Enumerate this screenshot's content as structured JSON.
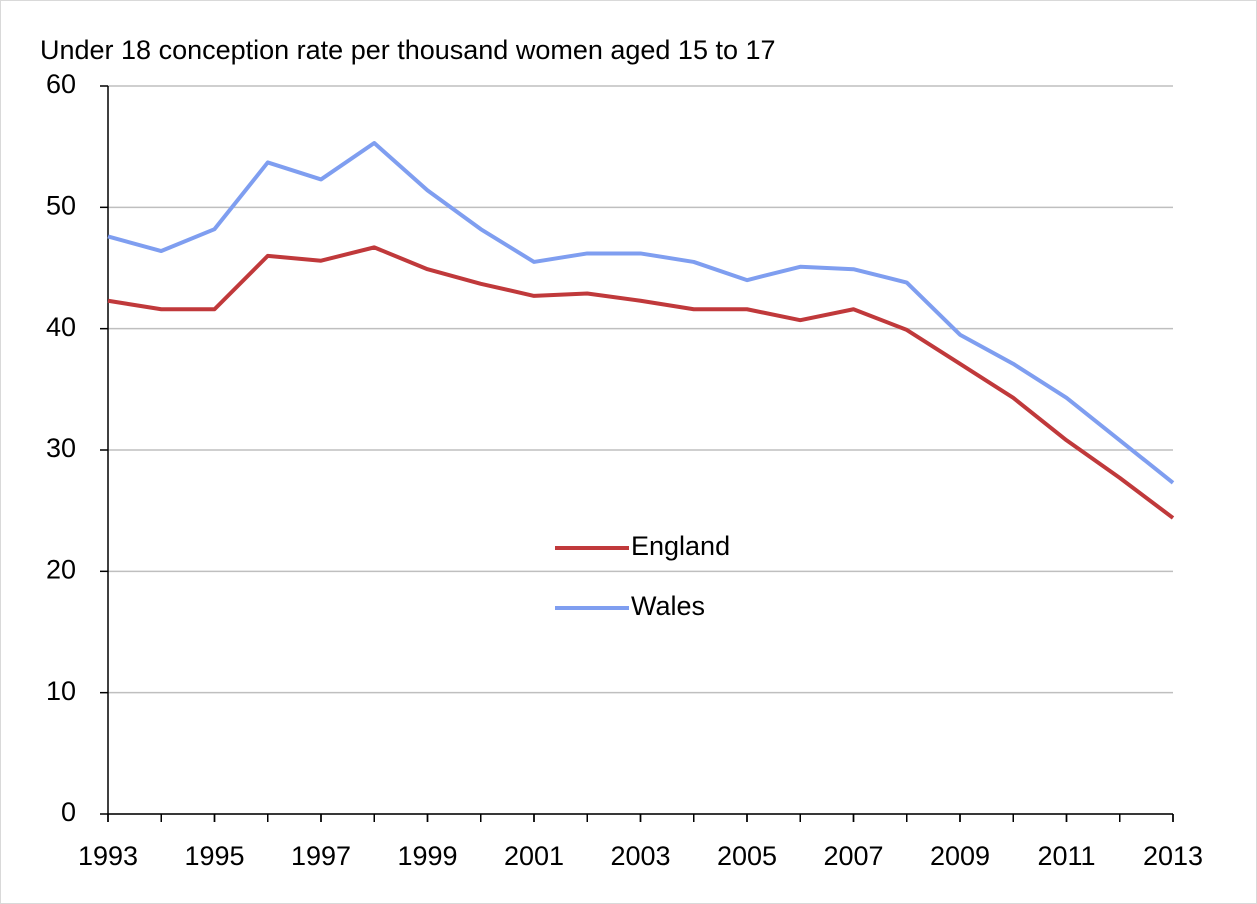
{
  "chart_data": {
    "type": "line",
    "title": "Under 18 conception rate per thousand women aged 15 to 17",
    "x": [
      1993,
      1994,
      1995,
      1996,
      1997,
      1998,
      1999,
      2000,
      2001,
      2002,
      2003,
      2004,
      2005,
      2006,
      2007,
      2008,
      2009,
      2010,
      2011,
      2012,
      2013
    ],
    "series": [
      {
        "name": "England",
        "color": "#c0393b",
        "values": [
          42.3,
          41.6,
          41.6,
          46.0,
          45.6,
          46.7,
          44.9,
          43.7,
          42.7,
          42.9,
          42.3,
          41.6,
          41.6,
          40.7,
          41.6,
          39.9,
          37.1,
          34.3,
          30.8,
          27.7,
          24.4
        ]
      },
      {
        "name": "Wales",
        "color": "#7f9ef0",
        "values": [
          47.6,
          46.4,
          48.2,
          53.7,
          52.3,
          55.3,
          51.4,
          48.2,
          45.5,
          46.2,
          46.2,
          45.5,
          44.0,
          45.1,
          44.9,
          43.8,
          39.5,
          37.1,
          34.3,
          30.8,
          27.3
        ]
      }
    ],
    "xlim": [
      1993,
      2013
    ],
    "xticks": [
      1993,
      1995,
      1997,
      1999,
      2001,
      2003,
      2005,
      2007,
      2009,
      2011,
      2013
    ],
    "ylim": [
      0,
      60
    ],
    "yticks": [
      0,
      10,
      20,
      30,
      40,
      50,
      60
    ],
    "grid": true,
    "legend": "center"
  }
}
